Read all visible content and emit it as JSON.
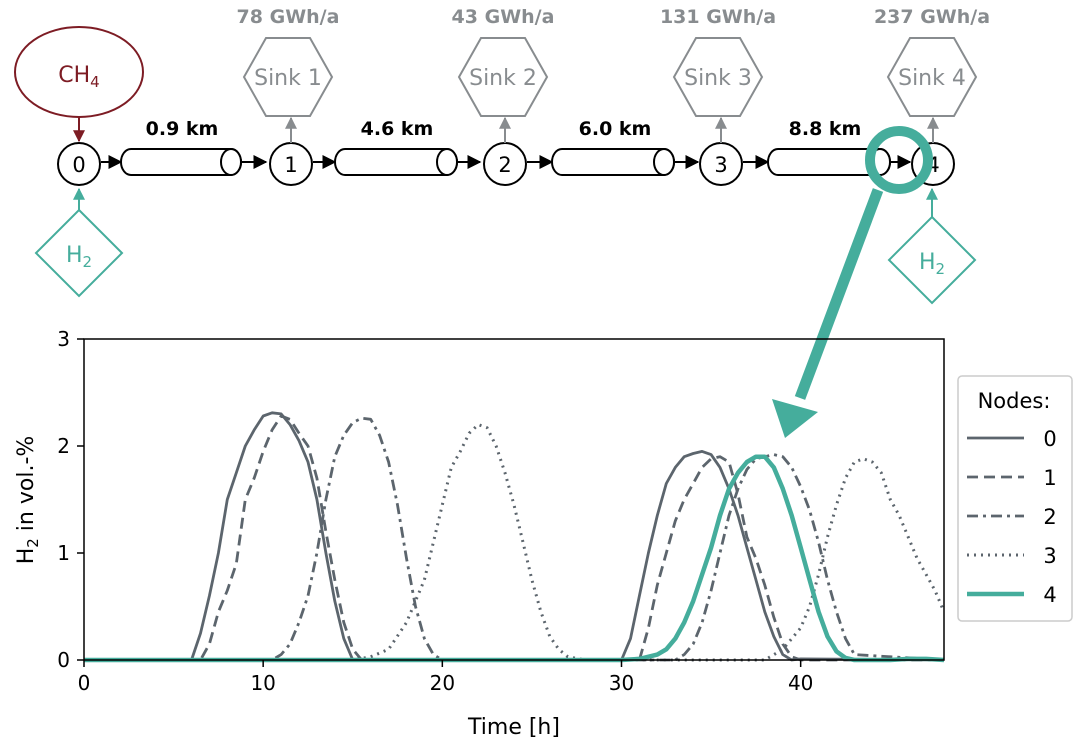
{
  "colors": {
    "grey": "#5c656d",
    "teal": "#45ad9c",
    "maroon": "#7d1c24",
    "sink_grey": "#888c8f"
  },
  "network": {
    "ch4_source": {
      "label": "CH",
      "subscript": "4"
    },
    "h2_label": "H",
    "h2_subscript": "2",
    "nodes": [
      "0",
      "1",
      "2",
      "3",
      "4"
    ],
    "pipes": [
      "0.9 km",
      "4.6 km",
      "6.0 km",
      "8.8 km"
    ],
    "sinks": [
      {
        "label": "Sink 1",
        "demand": "78 GWh/a"
      },
      {
        "label": "Sink 2",
        "demand": "43 GWh/a"
      },
      {
        "label": "Sink 3",
        "demand": "131 GWh/a"
      },
      {
        "label": "Sink 4",
        "demand": "237 GWh/a"
      }
    ]
  },
  "chart_data": {
    "type": "line",
    "xlabel": "Time [h]",
    "ylabel": "H₂ in vol.-%",
    "ylabel_main": "H",
    "ylabel_sub": "2",
    "ylabel_rest": " in vol.-%",
    "xlim": [
      0,
      48
    ],
    "ylim": [
      0,
      3
    ],
    "xticks": [
      0,
      10,
      20,
      30,
      40
    ],
    "yticks": [
      0,
      1,
      2,
      3
    ],
    "grid": false,
    "legend_title": "Nodes:",
    "legend_position": "right",
    "series": [
      {
        "name": "0",
        "style": "solid",
        "color": "#5c656d",
        "x": [
          0,
          6,
          6.5,
          7,
          7.5,
          8,
          8.5,
          9,
          9.5,
          10,
          10.5,
          11,
          11.5,
          12,
          12.5,
          13,
          13.5,
          14,
          14.5,
          15,
          30,
          30.5,
          31,
          31.5,
          32,
          32.5,
          33,
          33.5,
          34,
          34.5,
          35,
          35.5,
          36,
          36.5,
          37,
          37.5,
          38,
          38.5,
          39,
          39.5,
          40,
          48
        ],
        "y": [
          0,
          0,
          0.25,
          0.6,
          1.0,
          1.5,
          1.75,
          2.0,
          2.15,
          2.28,
          2.31,
          2.3,
          2.2,
          2.05,
          1.85,
          1.5,
          1.0,
          0.55,
          0.2,
          0,
          0,
          0.2,
          0.6,
          1.0,
          1.35,
          1.65,
          1.8,
          1.9,
          1.93,
          1.95,
          1.92,
          1.8,
          1.6,
          1.35,
          1.05,
          0.75,
          0.45,
          0.22,
          0.05,
          0,
          0.01,
          0
        ]
      },
      {
        "name": "1",
        "style": "dashed",
        "color": "#5c656d",
        "x": [
          0,
          6.5,
          7,
          7.5,
          8,
          8.5,
          9,
          9.5,
          10,
          10.5,
          11,
          11.5,
          12,
          12.5,
          13,
          13.5,
          14,
          14.5,
          15,
          15.5,
          31,
          31.5,
          32,
          32.5,
          33,
          33.5,
          34,
          34.5,
          35,
          35.5,
          36,
          36.5,
          37,
          37.5,
          38,
          38.5,
          39,
          39.5,
          40,
          48
        ],
        "y": [
          0,
          0,
          0.15,
          0.45,
          0.65,
          0.9,
          1.5,
          1.7,
          1.95,
          2.15,
          2.28,
          2.25,
          2.12,
          2.0,
          1.7,
          1.2,
          0.75,
          0.35,
          0.1,
          0,
          0,
          0.3,
          0.7,
          1.0,
          1.3,
          1.5,
          1.65,
          1.8,
          1.88,
          1.9,
          1.85,
          1.55,
          1.15,
          0.95,
          0.7,
          0.4,
          0.15,
          0.03,
          0,
          0
        ]
      },
      {
        "name": "2",
        "style": "dashdot",
        "color": "#5c656d",
        "x": [
          0,
          10.5,
          11,
          11.5,
          12,
          12.5,
          13,
          13.5,
          14,
          14.5,
          15,
          15.5,
          16,
          16.5,
          17,
          17.5,
          18,
          18.5,
          19,
          19.5,
          20,
          33,
          33.5,
          34,
          34.5,
          35,
          35.5,
          36,
          36.5,
          37,
          37.5,
          38,
          38.5,
          39,
          39.5,
          40,
          40.5,
          41,
          41.5,
          42,
          42.5,
          43,
          48
        ],
        "y": [
          0,
          0,
          0.05,
          0.15,
          0.35,
          0.6,
          1.0,
          1.5,
          1.9,
          2.1,
          2.22,
          2.26,
          2.25,
          2.1,
          1.85,
          1.45,
          0.95,
          0.5,
          0.2,
          0.05,
          0,
          0,
          0.05,
          0.15,
          0.35,
          0.65,
          1.0,
          1.35,
          1.6,
          1.78,
          1.88,
          1.9,
          1.92,
          1.9,
          1.8,
          1.62,
          1.4,
          1.1,
          0.75,
          0.45,
          0.2,
          0.05,
          0
        ]
      },
      {
        "name": "3",
        "style": "dotted",
        "color": "#5c656d",
        "x": [
          0,
          15,
          16,
          17,
          18,
          19,
          20,
          20.5,
          21,
          21.5,
          22,
          22.5,
          23,
          23.5,
          24,
          24.5,
          25,
          25.5,
          26,
          26.5,
          27,
          28,
          38,
          39,
          40,
          40.5,
          41,
          41.5,
          42,
          42.5,
          43,
          43.5,
          44,
          44.5,
          45,
          45.5,
          46,
          46.5,
          47,
          47.5,
          48
        ],
        "y": [
          0,
          0,
          0.03,
          0.1,
          0.35,
          0.75,
          1.45,
          1.8,
          1.95,
          2.12,
          2.2,
          2.17,
          2.0,
          1.75,
          1.45,
          1.1,
          0.75,
          0.45,
          0.22,
          0.1,
          0.03,
          0,
          0,
          0.1,
          0.3,
          0.5,
          0.8,
          1.15,
          1.45,
          1.7,
          1.85,
          1.88,
          1.85,
          1.75,
          1.5,
          1.35,
          1.15,
          0.95,
          0.8,
          0.65,
          0.45
        ]
      },
      {
        "name": "4",
        "style": "solid-thick",
        "color": "#45ad9c",
        "x": [
          0,
          29,
          30,
          31,
          32,
          32.5,
          33,
          33.5,
          34,
          34.5,
          35,
          35.5,
          36,
          36.5,
          37,
          37.5,
          38,
          38.5,
          39,
          39.5,
          40,
          40.5,
          41,
          41.5,
          42,
          42.5,
          43,
          43.5,
          44,
          45,
          46,
          47,
          48
        ],
        "y": [
          0,
          0,
          0,
          0.01,
          0.05,
          0.1,
          0.2,
          0.35,
          0.55,
          0.8,
          1.05,
          1.35,
          1.6,
          1.75,
          1.85,
          1.9,
          1.9,
          1.8,
          1.6,
          1.35,
          1.05,
          0.75,
          0.45,
          0.22,
          0.08,
          0.02,
          0,
          0,
          0,
          0,
          0.01,
          0.01,
          0
        ]
      }
    ]
  }
}
